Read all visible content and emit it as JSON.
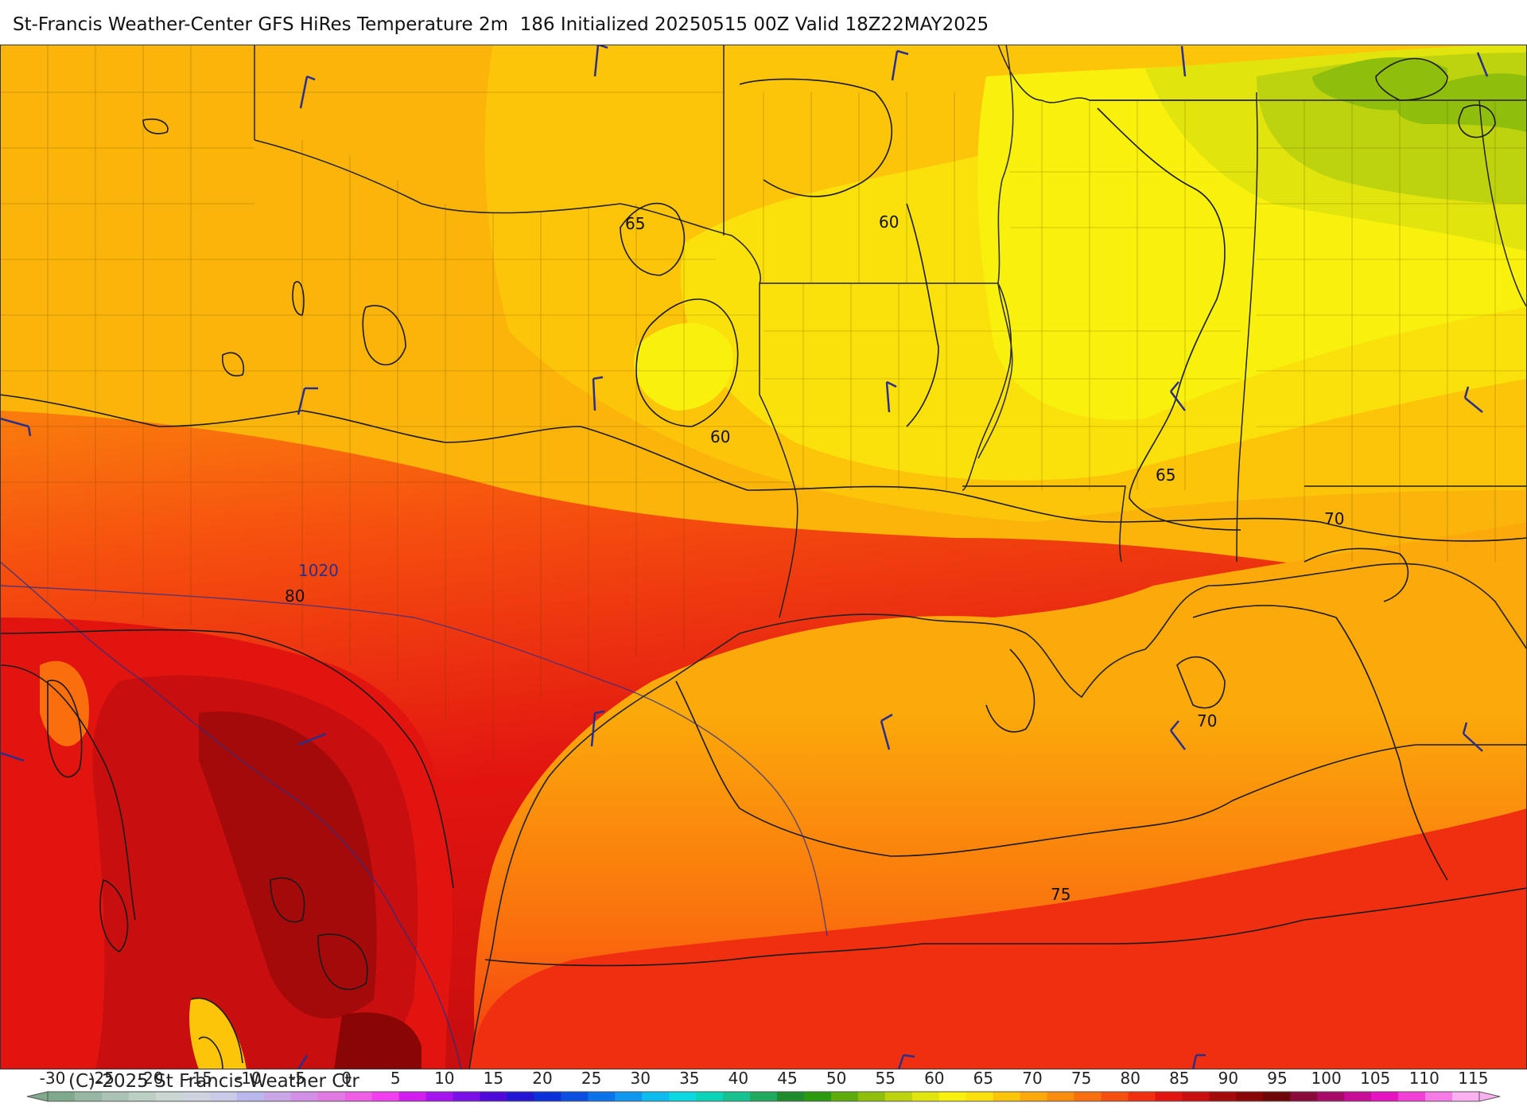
{
  "header": {
    "title": "St-Francis Weather-Center GFS HiRes Temperature 2m  186 Initialized 20250515 00Z Valid 18Z22MAY2025"
  },
  "map": {
    "contour_labels": [
      "65",
      "60",
      "60",
      "65",
      "70",
      "80",
      "1020",
      "70",
      "75"
    ]
  },
  "legend": {
    "ticks": [
      "-30",
      "-25",
      "-20",
      "-15",
      "-10",
      "-5",
      "0",
      "5",
      "10",
      "15",
      "20",
      "25",
      "30",
      "35",
      "40",
      "45",
      "50",
      "55",
      "60",
      "65",
      "70",
      "75",
      "80",
      "85",
      "90",
      "95",
      "100",
      "105",
      "110",
      "115"
    ],
    "colors": [
      "#7fa98c",
      "#97b7a2",
      "#aac3b4",
      "#bccfc4",
      "#c9d6d2",
      "#cdd4e0",
      "#c7cbe8",
      "#b9b8ec",
      "#c9a6e6",
      "#d38fe6",
      "#e27ae4",
      "#ef5fe6",
      "#f13ff0",
      "#d21fef",
      "#a514ee",
      "#7b0fe8",
      "#4d0ad8",
      "#2316d2",
      "#0b2fd8",
      "#0a4fe0",
      "#0b73ea",
      "#0d97ef",
      "#0cbcee",
      "#0cd8e0",
      "#0ad4b8",
      "#18c290",
      "#1ea95e",
      "#1e8c2c",
      "#2b9a10",
      "#5dac0b",
      "#8fbe0c",
      "#bdd30e",
      "#e2e40e",
      "#f8f10d",
      "#fbe10b",
      "#fcc50a",
      "#fba90b",
      "#fb8c0c",
      "#fa6e0d",
      "#f64f0f",
      "#ef2f10",
      "#e21410",
      "#c80e0e",
      "#a50a0a",
      "#8a0505",
      "#6e0808",
      "#8a0a3a",
      "#a80a68",
      "#c80e98",
      "#e514c0",
      "#f23fd6",
      "#f77be6",
      "#fbb0f0"
    ],
    "copyright": "(C)-2025 St Francis Weather Ctr"
  }
}
